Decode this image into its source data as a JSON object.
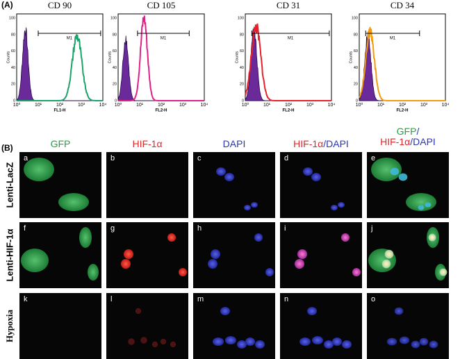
{
  "panel_a": {
    "label": "(A)",
    "yticks": [
      "0",
      "20",
      "40",
      "60",
      "80",
      "100"
    ],
    "xticks": [
      "10⁰",
      "10¹",
      "10²",
      "10³",
      "10⁴"
    ],
    "y_label": "Counts",
    "gate": "M1",
    "plots": [
      {
        "title": "CD 90",
        "x_label": "FL1-H"
      },
      {
        "title": "CD 105",
        "x_label": "FL2-H"
      },
      {
        "title": "CD 31",
        "x_label": "FL2-H"
      },
      {
        "title": "CD 34",
        "x_label": "FL2-H"
      }
    ]
  },
  "panel_b": {
    "label": "(B)",
    "columns": [
      [
        "GFP"
      ],
      [
        "HIF-1α"
      ],
      [
        "DAPI"
      ],
      [
        "HIF-1α",
        "/",
        "DAPI"
      ],
      [
        "GFP",
        "/",
        "HIF-1α",
        "/",
        "DAPI"
      ]
    ],
    "rows": [
      "Lenti-LacZ",
      "Lenti-HIF-1α",
      "Hypoxia"
    ],
    "letters": [
      "a",
      "b",
      "c",
      "d",
      "e",
      "f",
      "g",
      "h",
      "i",
      "j",
      "k",
      "l",
      "m",
      "n",
      "o"
    ]
  }
}
